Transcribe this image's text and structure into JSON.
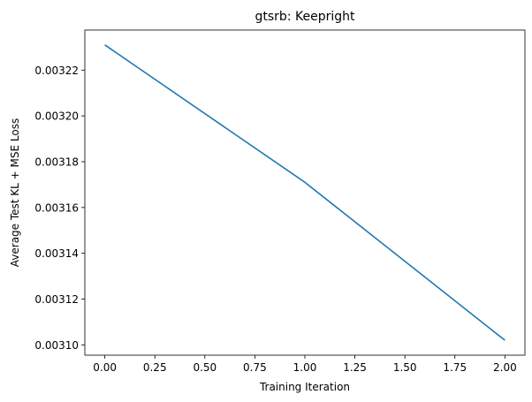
{
  "chart_data": {
    "type": "line",
    "title": "gtsrb: Keepright",
    "xlabel": "Training Iteration",
    "ylabel": "Average Test KL + MSE Loss",
    "x": [
      0,
      1,
      2
    ],
    "series": [
      {
        "values": [
          0.003231,
          0.003171,
          0.003102
        ]
      }
    ],
    "xlim": [
      -0.1,
      2.1
    ],
    "ylim": [
      0.0030955,
      0.0032375
    ],
    "xticks": [
      0,
      0.25,
      0.5,
      0.75,
      1,
      1.25,
      1.5,
      1.75,
      2
    ],
    "xtick_labels": [
      "0.00",
      "0.25",
      "0.50",
      "0.75",
      "1.00",
      "1.25",
      "1.50",
      "1.75",
      "2.00"
    ],
    "yticks": [
      0.0031,
      0.00312,
      0.00314,
      0.00316,
      0.00318,
      0.0032,
      0.00322
    ],
    "ytick_labels": [
      "0.00310",
      "0.00312",
      "0.00314",
      "0.00316",
      "0.00318",
      "0.00320",
      "0.00322"
    ],
    "grid": false,
    "line_color": "#1f77b4"
  }
}
